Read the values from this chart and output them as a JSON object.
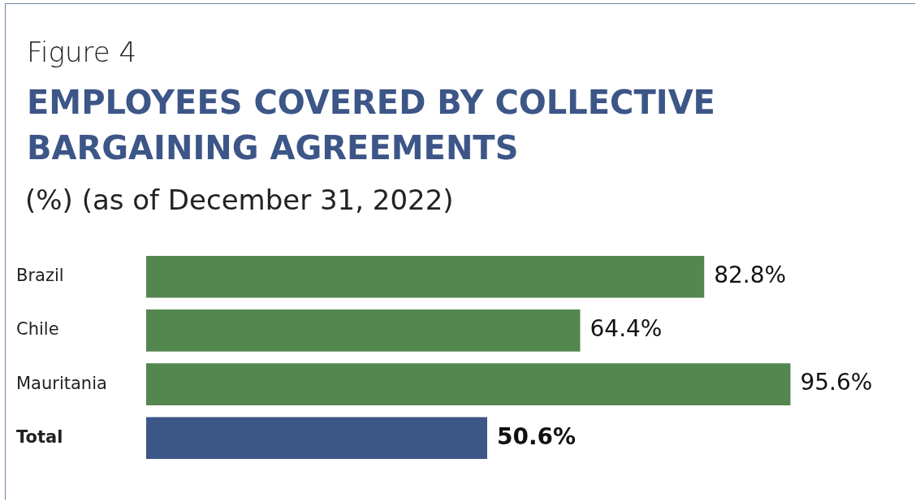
{
  "chart_data": {
    "type": "bar",
    "orientation": "horizontal",
    "title": "EMPLOYEES COVERED BY COLLECTIVE BARGAINING AGREEMENTS",
    "subtitle": "(%) (as of December 31, 2022)",
    "annotations": [
      "Figure 4"
    ],
    "categories": [
      "Brazil",
      "Chile",
      "Mauritania",
      "Total"
    ],
    "values": [
      82.8,
      64.4,
      95.6,
      50.6
    ],
    "colors": [
      "#548650",
      "#548650",
      "#548650",
      "#3d5688"
    ],
    "value_labels": [
      "82.8%",
      "64.4%",
      "95.6%",
      "50.6%"
    ],
    "grid": false,
    "legend": false
  }
}
